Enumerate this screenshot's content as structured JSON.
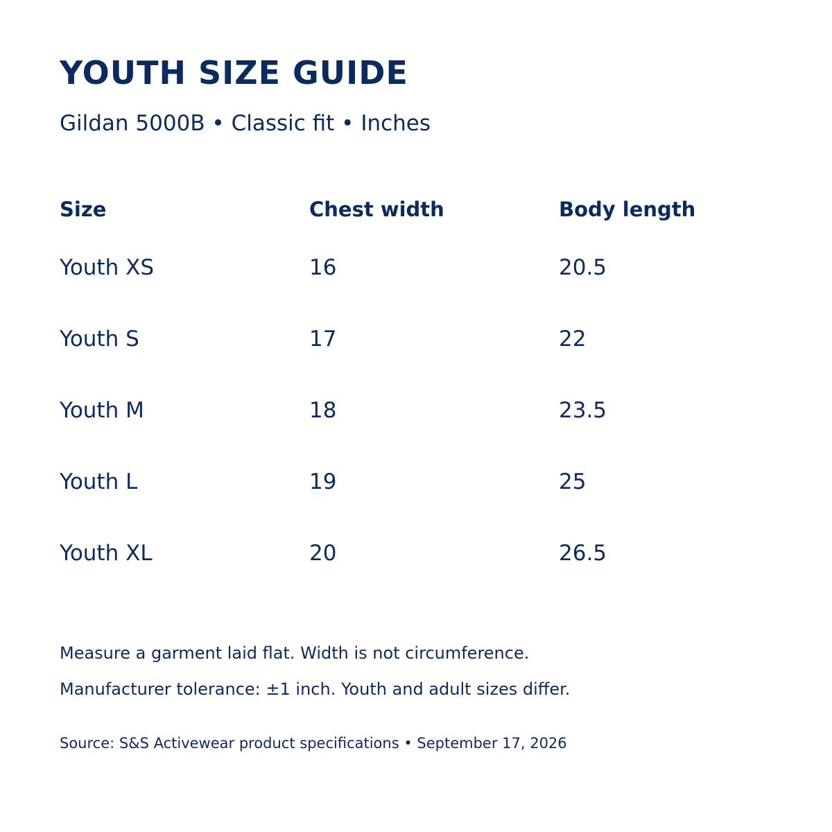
{
  "header": {
    "title": "YOUTH SIZE GUIDE",
    "subtitle": "Gildan 5000B • Classic fit • Inches"
  },
  "table": {
    "columns": [
      "Size",
      "Chest width",
      "Body length"
    ],
    "rows": [
      [
        "Youth XS",
        "16",
        "20.5"
      ],
      [
        "Youth S",
        "17",
        "22"
      ],
      [
        "Youth M",
        "18",
        "23.5"
      ],
      [
        "Youth L",
        "19",
        "25"
      ],
      [
        "Youth XL",
        "20",
        "26.5"
      ]
    ]
  },
  "notes": [
    "Measure a garment laid flat. Width is not circumference.",
    "Manufacturer tolerance: ±1 inch. Youth and adult sizes differ."
  ],
  "footer": {
    "source": "Source: S&S Activewear product specifications • September 17, 2026"
  },
  "colors": {
    "text": "#0b2a5e",
    "background": "#ffffff"
  }
}
